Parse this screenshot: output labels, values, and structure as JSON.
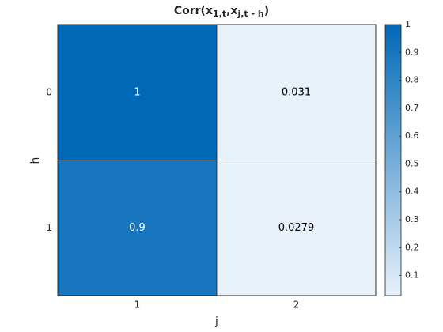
{
  "chart_data": {
    "type": "heatmap",
    "title": [
      "Corr(x",
      "1,t",
      ",x",
      "j,t - h",
      ")"
    ],
    "xlabel": "j",
    "ylabel": "h",
    "x_categories": [
      "1",
      "2"
    ],
    "y_categories": [
      "0",
      "1"
    ],
    "values": [
      [
        1,
        0.031
      ],
      [
        0.9,
        0.0279
      ]
    ],
    "colormap": [
      "#e8f1fa",
      "#0068b7"
    ],
    "clim": [
      0.0279,
      1
    ],
    "colorbar_ticks": [
      0.1,
      0.2,
      0.3,
      0.4,
      0.5,
      0.6,
      0.7,
      0.8,
      0.9,
      1
    ]
  }
}
